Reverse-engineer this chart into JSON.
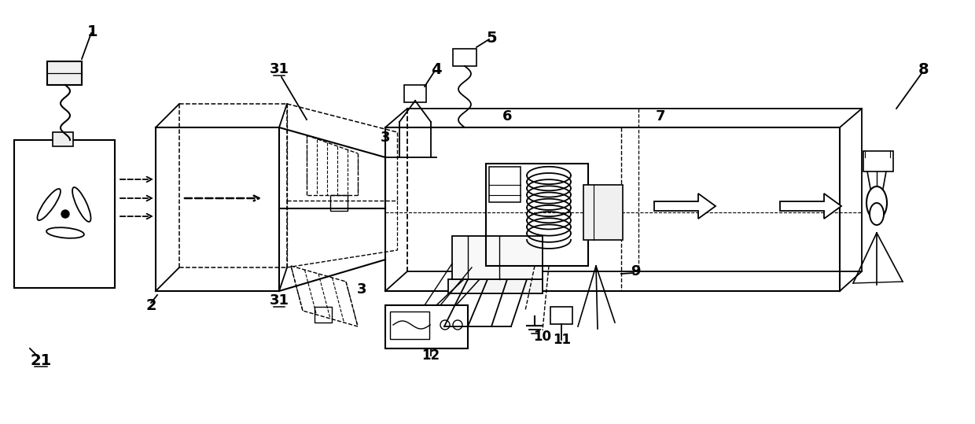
{
  "background": "#ffffff",
  "figsize": [
    12.4,
    5.39
  ],
  "dpi": 100
}
